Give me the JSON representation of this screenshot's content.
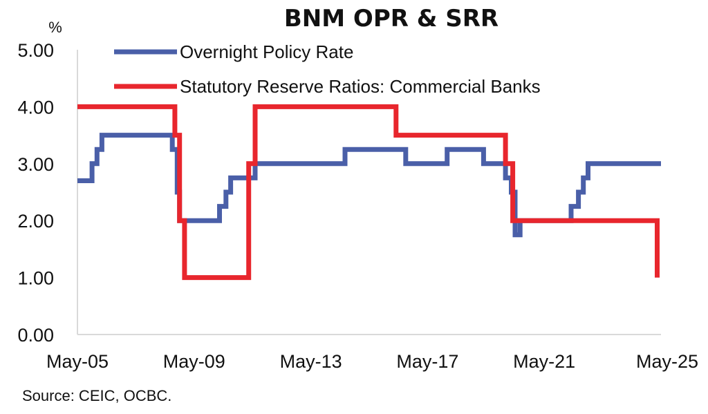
{
  "chart_data": {
    "type": "line",
    "title": "BNM OPR & SRR",
    "ylabel": "%",
    "ylim": [
      0,
      5
    ],
    "yticks": [
      "0.00",
      "1.00",
      "2.00",
      "3.00",
      "4.00",
      "5.00"
    ],
    "xlim": [
      2005.33,
      2025.33
    ],
    "xticks": [
      "May-05",
      "May-09",
      "May-13",
      "May-17",
      "May-21",
      "May-25"
    ],
    "xtick_values": [
      2005.33,
      2009.33,
      2013.33,
      2017.33,
      2021.33,
      2025.33
    ],
    "legend_position": "top",
    "grid": false,
    "series": [
      {
        "name": "Overnight Policy Rate",
        "color": "#4a5fa8",
        "x": [
          2005.33,
          2005.83,
          2005.83,
          2006.0,
          2006.0,
          2006.17,
          2006.17,
          2006.33,
          2006.33,
          2008.58,
          2008.58,
          2008.75,
          2008.75,
          2008.83,
          2008.83,
          2009.0,
          2009.0,
          2010.2,
          2010.2,
          2010.42,
          2010.42,
          2010.58,
          2010.58,
          2011.42,
          2011.42,
          2014.5,
          2014.5,
          2016.58,
          2016.58,
          2018.0,
          2018.0,
          2019.25,
          2019.25,
          2020.0,
          2020.0,
          2020.2,
          2020.2,
          2020.33,
          2020.33,
          2020.5,
          2020.5,
          2022.25,
          2022.25,
          2022.5,
          2022.5,
          2022.67,
          2022.67,
          2022.83,
          2022.83,
          2023.25,
          2023.25,
          2025.33
        ],
        "y": [
          2.7,
          2.7,
          3.0,
          3.0,
          3.25,
          3.25,
          3.5,
          3.5,
          3.5,
          3.5,
          3.25,
          3.25,
          2.5,
          2.5,
          2.0,
          2.0,
          2.0,
          2.0,
          2.25,
          2.25,
          2.5,
          2.5,
          2.75,
          2.75,
          3.0,
          3.0,
          3.25,
          3.25,
          3.0,
          3.0,
          3.25,
          3.25,
          3.0,
          3.0,
          2.75,
          2.75,
          2.5,
          2.5,
          1.75,
          1.75,
          2.0,
          2.0,
          2.25,
          2.25,
          2.5,
          2.5,
          2.75,
          2.75,
          3.0,
          3.0,
          3.0,
          3.0
        ]
      },
      {
        "name": "Statutory Reserve Ratios: Commercial Banks",
        "color": "#e8262d",
        "x": [
          2005.33,
          2008.67,
          2008.67,
          2008.83,
          2008.83,
          2009.0,
          2009.0,
          2011.2,
          2011.2,
          2011.42,
          2011.42,
          2016.25,
          2016.25,
          2020.0,
          2020.0,
          2020.25,
          2020.25,
          2025.2,
          2025.2
        ],
        "y": [
          4.0,
          4.0,
          3.5,
          3.5,
          2.0,
          2.0,
          1.0,
          1.0,
          3.0,
          3.0,
          4.0,
          4.0,
          3.5,
          3.5,
          3.0,
          3.0,
          2.0,
          2.0,
          1.0
        ]
      }
    ],
    "source": "Source: CEIC, OCBC."
  }
}
